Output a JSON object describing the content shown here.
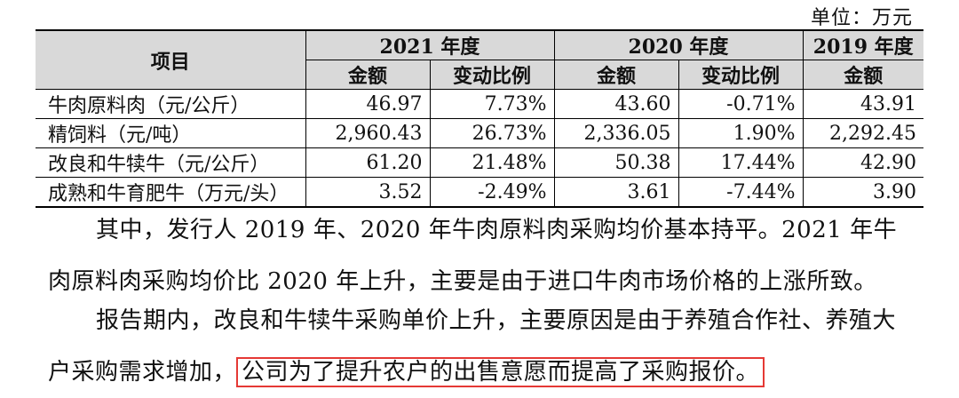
{
  "unit_label": "单位：万元",
  "table": {
    "header_item": "项目",
    "years": [
      "2021 年度",
      "2020 年度",
      "2019 年度"
    ],
    "sub_amount": "金额",
    "sub_change": "变动比例",
    "rows": [
      {
        "item": "牛肉原料肉（元/公斤）",
        "v2021": "46.97",
        "c2021": "7.73%",
        "v2020": "43.60",
        "c2020": "-0.71%",
        "v2019": "43.91"
      },
      {
        "item": "精饲料（元/吨）",
        "v2021": "2,960.43",
        "c2021": "26.73%",
        "v2020": "2,336.05",
        "c2020": "1.90%",
        "v2019": "2,292.45"
      },
      {
        "item": "改良和牛犊牛（元/公斤）",
        "v2021": "61.20",
        "c2021": "21.48%",
        "v2020": "50.38",
        "c2020": "17.44%",
        "v2019": "42.90"
      },
      {
        "item": "成熟和牛育肥牛（万元/头）",
        "v2021": "3.52",
        "c2021": "-2.49%",
        "v2020": "3.61",
        "c2020": "-7.44%",
        "v2019": "3.90"
      }
    ]
  },
  "paragraph1": "其中，发行人 2019 年、2020 年牛肉原料肉采购均价基本持平。2021 年牛肉原料肉采购均价比 2020 年上升，主要是由于进口牛肉市场价格的上涨所致。",
  "paragraph2_plain": "报告期内，改良和牛犊牛采购单价上升，主要原因是由于养殖合作社、养殖大户采购需求增加，",
  "paragraph2_highlight": "公司为了提升农户的出售意愿而提高了采购报价。"
}
